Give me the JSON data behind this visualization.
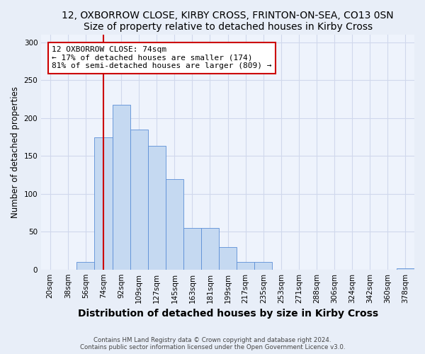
{
  "title": "12, OXBORROW CLOSE, KIRBY CROSS, FRINTON-ON-SEA, CO13 0SN",
  "subtitle": "Size of property relative to detached houses in Kirby Cross",
  "xlabel": "Distribution of detached houses by size in Kirby Cross",
  "ylabel": "Number of detached properties",
  "footnote1": "Contains HM Land Registry data © Crown copyright and database right 2024.",
  "footnote2": "Contains public sector information licensed under the Open Government Licence v3.0.",
  "bar_labels": [
    "20sqm",
    "38sqm",
    "56sqm",
    "74sqm",
    "92sqm",
    "109sqm",
    "127sqm",
    "145sqm",
    "163sqm",
    "181sqm",
    "199sqm",
    "217sqm",
    "235sqm",
    "253sqm",
    "271sqm",
    "288sqm",
    "306sqm",
    "324sqm",
    "342sqm",
    "360sqm",
    "378sqm"
  ],
  "bar_values": [
    0,
    0,
    10,
    175,
    218,
    185,
    163,
    119,
    55,
    55,
    30,
    10,
    10,
    0,
    0,
    0,
    0,
    0,
    0,
    0,
    2
  ],
  "bar_color": "#c5d9f1",
  "bar_edge_color": "#5b8ed6",
  "vline_x_index": 3,
  "annotation_text": "12 OXBORROW CLOSE: 74sqm\n← 17% of detached houses are smaller (174)\n81% of semi-detached houses are larger (809) →",
  "annotation_box_color": "#ffffff",
  "annotation_box_edge_color": "#cc0000",
  "vline_color": "#cc0000",
  "ylim": [
    0,
    310
  ],
  "yticks": [
    0,
    50,
    100,
    150,
    200,
    250,
    300
  ],
  "bg_color": "#e8eef8",
  "plot_bg_color": "#eef3fc",
  "grid_color": "#d0d8ec",
  "title_fontsize": 10,
  "subtitle_fontsize": 9.5,
  "xlabel_fontsize": 10,
  "ylabel_fontsize": 8.5,
  "tick_fontsize": 7.5,
  "annotation_fontsize": 8
}
